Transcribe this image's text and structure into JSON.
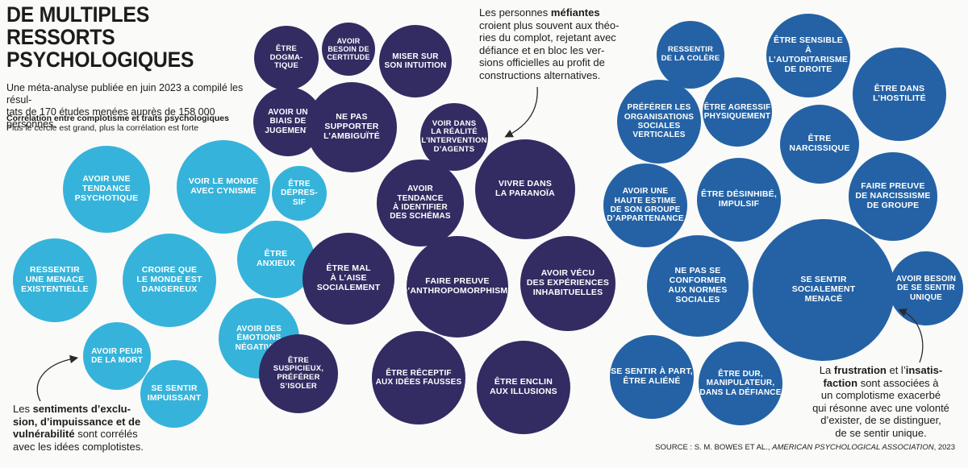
{
  "title": "DE MULTIPLES\nRESSORTS\nPSYCHOLOGIQUES",
  "intro": "Une méta-analyse publiée en juin 2023 a compilé les résul-\ntats de 170 études menées auprès de 158 000 personnes.",
  "legend": {
    "title": "Corrélation entre complotisme et traits psychologiques",
    "subtitle": "Plus le cercle est grand, plus la corrélation est forte"
  },
  "colors": {
    "light_blue": "#36b3da",
    "dark_purple": "#322c62",
    "mid_blue": "#2462a5"
  },
  "annotations": {
    "mefiantes": {
      "t1": "Les personnes ",
      "b1": "méfiantes",
      "t2": "\ncroient plus souvent aux théo-\nries du complot, rejetant avec\ndéfiance et en bloc les ver-\nsions officielles au profit de\nconstructions alternatives."
    },
    "exclusion": {
      "t1": "Les ",
      "b1": "sentiments d’exclu-\nsion, d’impuissance et de\nvulnérabilité",
      "t2": " sont corrélés\navec les idées complotistes."
    },
    "frustration": {
      "t1": "La ",
      "b1": "frustration",
      "t2": " et l’",
      "b2": "insatis-\nfaction",
      "t3": " sont associées à\nun complotisme exacerbé\nqui résonne avec une volonté\nd’exister, de se distinguer,\nde se sentir unique."
    }
  },
  "source": {
    "prefix": "SOURCE : S. M. BOWES ET AL., ",
    "journal": "AMERICAN PSYCHOLOGICAL ASSOCIATION",
    "suffix": ", 2023"
  },
  "bubbles": [
    {
      "label": "Avoir une tendance\npsychotique",
      "group": "light_blue"
    },
    {
      "label": "Voir le monde\navec cynisme",
      "group": "light_blue"
    },
    {
      "label": "Être\ndépres-\nsif",
      "group": "light_blue"
    },
    {
      "label": "Être\nanxieux",
      "group": "light_blue"
    },
    {
      "label": "Ressentir\nune menace\nexistentielle",
      "group": "light_blue"
    },
    {
      "label": "Croire que\nle monde est\ndangereux",
      "group": "light_blue"
    },
    {
      "label": "Avoir des\némotions\nnégatives",
      "group": "light_blue"
    },
    {
      "label": "Avoir peur\nde la mort",
      "group": "light_blue"
    },
    {
      "label": "Se sentir\nimpuissant",
      "group": "light_blue"
    },
    {
      "label": "Être\ndogma-\ntique",
      "group": "dark_purple"
    },
    {
      "label": "Avoir\nbesoin de\ncertitude",
      "group": "dark_purple"
    },
    {
      "label": "Miser sur\nson intuition",
      "group": "dark_purple"
    },
    {
      "label": "Avoir un\nbiais de\njugement",
      "group": "dark_purple"
    },
    {
      "label": "Ne pas\nsupporter\nl’ambiguïté",
      "group": "dark_purple"
    },
    {
      "label": "Voir dans\nla réalité\nl’intervention\nd’agents",
      "group": "dark_purple"
    },
    {
      "label": "Avoir\ntendance\nà identifier\ndes schémas",
      "group": "dark_purple"
    },
    {
      "label": "Vivre dans\nla paranoïa",
      "group": "dark_purple"
    },
    {
      "label": "Être mal\nà l’aise\nsocialement",
      "group": "dark_purple"
    },
    {
      "label": "Faire preuve\nd’anthropomorphisme",
      "group": "dark_purple"
    },
    {
      "label": "Avoir vécu\ndes expériences\ninhabituelles",
      "group": "dark_purple"
    },
    {
      "label": "Être\nsuspicieux,\npréférer\ns’isoler",
      "group": "dark_purple"
    },
    {
      "label": "Être réceptif\naux idées fausses",
      "group": "dark_purple"
    },
    {
      "label": "Être enclin\naux illusions",
      "group": "dark_purple"
    },
    {
      "label": "Ressentir\nde la colère",
      "group": "mid_blue"
    },
    {
      "label": "Être sensible\nà l’autoritarisme\nde droite",
      "group": "mid_blue"
    },
    {
      "label": "Être dans\nl’hostilité",
      "group": "mid_blue"
    },
    {
      "label": "Préférer les\norganisations\nsociales\nverticales",
      "group": "mid_blue"
    },
    {
      "label": "Être agressif\nphysiquement",
      "group": "mid_blue"
    },
    {
      "label": "Être narcissique",
      "group": "mid_blue"
    },
    {
      "label": "Avoir une\nhaute estime\nde son groupe\nd’appartenance",
      "group": "mid_blue"
    },
    {
      "label": "Être désinhibé,\nimpulsif",
      "group": "mid_blue"
    },
    {
      "label": "Faire preuve\nde narcissisme\nde groupe",
      "group": "mid_blue"
    },
    {
      "label": "Ne pas se conformer\naux normes sociales",
      "group": "mid_blue"
    },
    {
      "label": "Se sentir\nsocialement\nmenacé",
      "group": "mid_blue"
    },
    {
      "label": "Avoir besoin\nde se sentir\nunique",
      "group": "mid_blue"
    },
    {
      "label": "Se sentir à part,\nêtre aliéné",
      "group": "mid_blue"
    },
    {
      "label": "Être dur,\nmanipulateur,\ndans la défiance",
      "group": "mid_blue"
    }
  ]
}
